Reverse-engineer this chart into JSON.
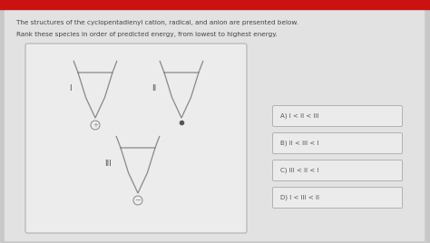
{
  "bg_color": "#c8c8c8",
  "header_color": "#cc1111",
  "content_bg": "#e2e2e2",
  "text_color": "#444444",
  "title_text": "The structures of the cyclopentadienyl cation, radical, and anion are presented below.",
  "subtitle_text": "Rank these species in order of predicted energy, from lowest to highest energy.",
  "choices": [
    "A) I < II < III",
    "B) II < III < I",
    "C) III < II < I",
    "D) I < III < II"
  ],
  "struct_box_bg": "#ebebeb",
  "struct_box_border": "#aaaaaa",
  "choice_bg": "#ebebeb",
  "choice_border": "#aaaaaa",
  "ring_color": "#888888",
  "label_color": "#555555"
}
